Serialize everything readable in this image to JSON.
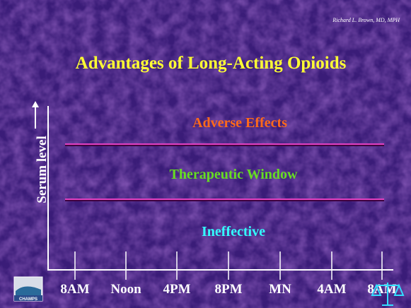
{
  "author": "Richard L. Brown, MD, MPH",
  "title": "Advantages of Long-Acting Opioids",
  "y_axis_label": "Serum level",
  "zones": [
    "Adverse Effects",
    "Therapeutic Window",
    "Ineffective"
  ],
  "x_labels": [
    "8AM",
    "Noon",
    "4PM",
    "8PM",
    "MN",
    "4AM",
    "8AM"
  ],
  "logo": "CHAMPS"
}
